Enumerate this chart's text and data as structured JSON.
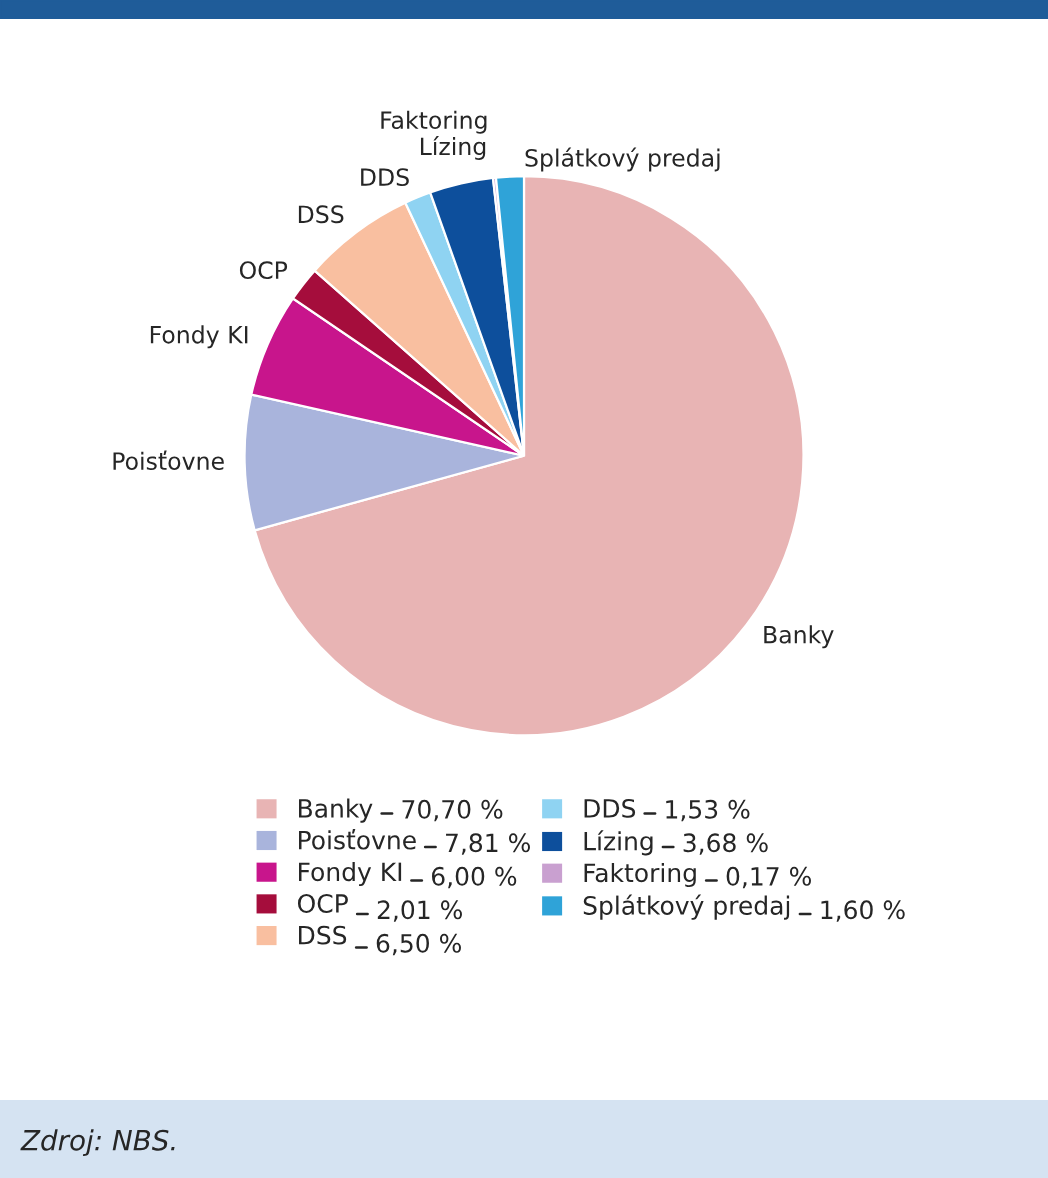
{
  "chart_data": {
    "type": "pie",
    "categories": [
      "Banky",
      "Poisťovne",
      "Fondy KI",
      "OCP",
      "DSS",
      "DDS",
      "Lízing",
      "Faktoring",
      "Splátkový predaj"
    ],
    "values": [
      70.7,
      7.81,
      6.0,
      2.01,
      6.5,
      1.53,
      3.68,
      0.17,
      1.6
    ],
    "value_labels": [
      "70,70 %",
      "7,81 %",
      "6,00 %",
      "2,01 %",
      "6,50 %",
      "1,53 %",
      "3,68 %",
      "0,17 %",
      "1,60 %"
    ],
    "colors": [
      "#e8b4b4",
      "#a9b4dc",
      "#c8158c",
      "#a50d3c",
      "#f9bfa0",
      "#8fd3f2",
      "#0d4f9c",
      "#c9a0d0",
      "#2fa3d8"
    ],
    "legend": "bottom",
    "annotations": [
      "Zdroj: NBS."
    ]
  }
}
